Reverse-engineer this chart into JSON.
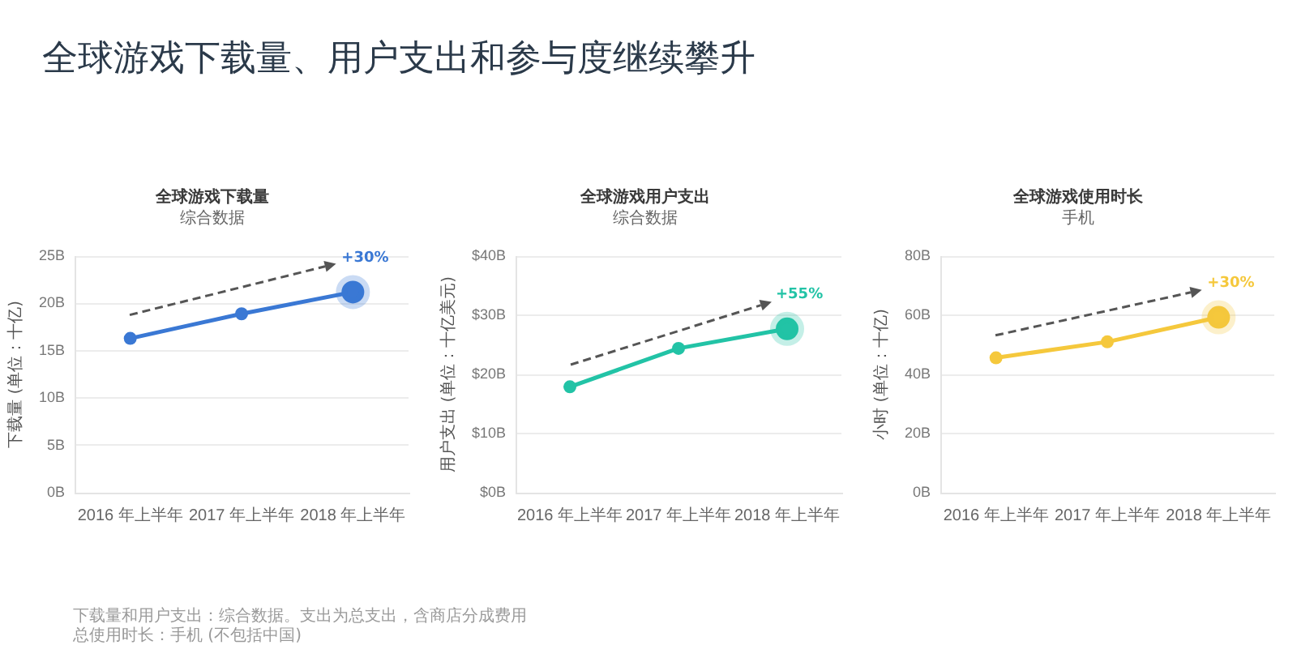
{
  "chart_data": [
    {
      "type": "other",
      "title": "全球游戏下载量、用户支出和参与度继续攀升",
      "annotations": [
        "下载量和用户支出：综合数据。支出为总支出，含商店分成费用",
        "总使用时长：手机 (不包括中国)"
      ]
    },
    {
      "type": "line",
      "title": "全球游戏下载量",
      "subtitle": "综合数据",
      "ylabel": "下载量 (单位：十亿)",
      "categories": [
        "2016 年上半年",
        "2017 年上半年",
        "2018 年上半年"
      ],
      "values": [
        16.3,
        18.9,
        21.2
      ],
      "color": "#3a78d4",
      "ylim": [
        0,
        25
      ],
      "yticks": [
        {
          "value": 0,
          "label": "0B"
        },
        {
          "value": 5,
          "label": "5B"
        },
        {
          "value": 10,
          "label": "10B"
        },
        {
          "value": 15,
          "label": "15B"
        },
        {
          "value": 20,
          "label": "20B"
        },
        {
          "value": 25,
          "label": "25B"
        }
      ],
      "grid": "y",
      "marker": "circle",
      "line_style": "solid",
      "annotations": [
        "+30%"
      ]
    },
    {
      "type": "line",
      "title": "全球游戏用户支出",
      "subtitle": "综合数据",
      "ylabel": "用户支出 (单位：十亿美元)",
      "categories": [
        "2016 年上半年",
        "2017 年上半年",
        "2018 年上半年"
      ],
      "values": [
        17.9,
        24.4,
        27.7
      ],
      "color": "#22c3a6",
      "ylim": [
        0,
        40
      ],
      "yticks": [
        {
          "value": 0,
          "label": "$0B"
        },
        {
          "value": 10,
          "label": "$10B"
        },
        {
          "value": 20,
          "label": "$20B"
        },
        {
          "value": 30,
          "label": "$30B"
        },
        {
          "value": 40,
          "label": "$40B"
        }
      ],
      "grid": "y",
      "marker": "circle",
      "line_style": "solid",
      "annotations": [
        "+55%"
      ]
    },
    {
      "type": "line",
      "title": "全球游戏使用时长",
      "subtitle": "手机",
      "ylabel": "小时 (单位：十亿)",
      "categories": [
        "2016 年上半年",
        "2017 年上半年",
        "2018 年上半年"
      ],
      "values": [
        45.6,
        51,
        59.3
      ],
      "color": "#f5c83c",
      "ylim": [
        0,
        80
      ],
      "yticks": [
        {
          "value": 0,
          "label": "0B"
        },
        {
          "value": 20,
          "label": "20B"
        },
        {
          "value": 40,
          "label": "40B"
        },
        {
          "value": 60,
          "label": "60B"
        },
        {
          "value": 80,
          "label": "80B"
        }
      ],
      "grid": "y",
      "marker": "circle",
      "line_style": "solid",
      "annotations": [
        "+30%"
      ]
    }
  ]
}
